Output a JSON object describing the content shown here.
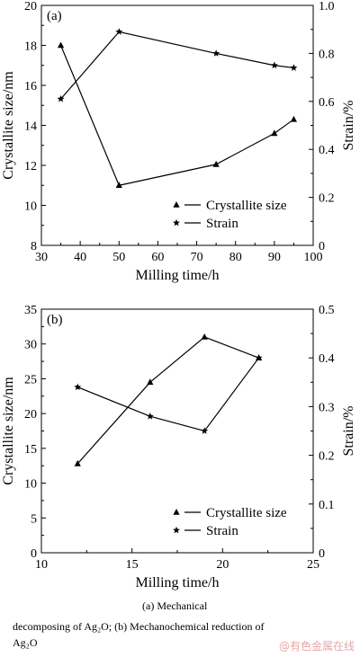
{
  "chart_data": [
    {
      "type": "line",
      "panel_label": "(a)",
      "xlabel": "Milling time/h",
      "ylabel": "Crystallite size/nm",
      "y2label": "Strain/%",
      "xlim": [
        30,
        100
      ],
      "ylim": [
        8,
        20
      ],
      "y2lim": [
        0,
        1.0
      ],
      "xticks": [
        "30",
        "40",
        "50",
        "60",
        "70",
        "80",
        "90",
        "100"
      ],
      "yticks": [
        "8",
        "10",
        "12",
        "14",
        "16",
        "18",
        "20"
      ],
      "y2ticks": [
        "0",
        "0.2",
        "0.4",
        "0.6",
        "0.8",
        "1.0"
      ],
      "grid": false,
      "legend_position": "bottom-right",
      "series": [
        {
          "name": "Crystallite size",
          "marker": "triangle",
          "axis": "left",
          "x": [
            35,
            50,
            75,
            90,
            95
          ],
          "y": [
            18.0,
            11.0,
            12.05,
            13.6,
            14.3
          ]
        },
        {
          "name": "Strain",
          "marker": "star",
          "axis": "right",
          "x": [
            35,
            50,
            75,
            90,
            95
          ],
          "y": [
            0.61,
            0.89,
            0.8,
            0.75,
            0.74
          ]
        }
      ]
    },
    {
      "type": "line",
      "panel_label": "(b)",
      "xlabel": "Milling time/h",
      "ylabel": "Crystallite size/nm",
      "y2label": "Strain/%",
      "xlim": [
        10,
        25
      ],
      "ylim": [
        0,
        35
      ],
      "y2lim": [
        0,
        0.5
      ],
      "xticks": [
        "10",
        "15",
        "20",
        "25"
      ],
      "yticks": [
        "0",
        "5",
        "10",
        "15",
        "20",
        "25",
        "30",
        "35"
      ],
      "y2ticks": [
        "0",
        "0.1",
        "0.2",
        "0.3",
        "0.4",
        "0.5"
      ],
      "grid": false,
      "legend_position": "bottom-right",
      "series": [
        {
          "name": "Crystallite size",
          "marker": "triangle",
          "axis": "left",
          "x": [
            12,
            16,
            19,
            22
          ],
          "y": [
            12.8,
            24.5,
            31.0,
            28.0
          ]
        },
        {
          "name": "Strain",
          "marker": "star",
          "axis": "right",
          "x": [
            12,
            16,
            19,
            22
          ],
          "y": [
            0.34,
            0.28,
            0.25,
            0.4
          ]
        }
      ]
    }
  ],
  "caption": {
    "line1": "(a)   Mechanical",
    "line2": "decomposing  of  Ag₂O;  (b)  Mechanochemical  reduction  of",
    "line3": "Ag₂O"
  },
  "watermark": "@有色金属在线"
}
